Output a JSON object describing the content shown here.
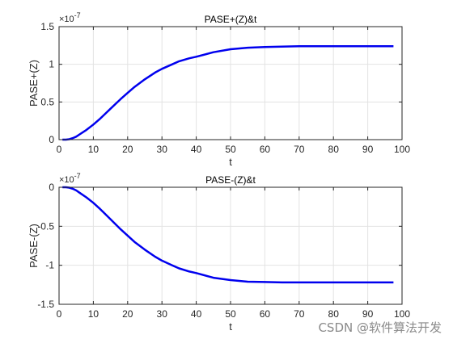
{
  "chart_data": [
    {
      "type": "line",
      "title": "PASE+(Z)&t",
      "xlabel": "t",
      "ylabel": "PASE+(Z)",
      "exponent_label": "×10",
      "exponent_power": "-7",
      "xlim": [
        0,
        100
      ],
      "ylim": [
        0,
        1.5
      ],
      "xticks": [
        0,
        10,
        20,
        30,
        40,
        50,
        60,
        70,
        80,
        90,
        100
      ],
      "yticks": [
        0,
        0.5,
        1,
        1.5
      ],
      "xtick_labels": [
        "0",
        "10",
        "20",
        "30",
        "40",
        "50",
        "60",
        "70",
        "80",
        "90",
        "100"
      ],
      "ytick_labels": [
        "0",
        "0.5",
        "1",
        "1.5"
      ],
      "grid": true,
      "series": [
        {
          "color": "#0000ee",
          "x": [
            1,
            2,
            3,
            4,
            5,
            6,
            8,
            10,
            12,
            15,
            18,
            20,
            22,
            25,
            28,
            30,
            33,
            35,
            38,
            40,
            45,
            50,
            55,
            60,
            65,
            70,
            75,
            80,
            85,
            90,
            95,
            97.5
          ],
          "y": [
            0,
            0,
            0.005,
            0.02,
            0.04,
            0.07,
            0.13,
            0.2,
            0.28,
            0.41,
            0.54,
            0.62,
            0.7,
            0.8,
            0.89,
            0.94,
            1.0,
            1.04,
            1.08,
            1.1,
            1.16,
            1.2,
            1.22,
            1.23,
            1.235,
            1.24,
            1.24,
            1.24,
            1.24,
            1.24,
            1.24,
            1.24
          ]
        }
      ]
    },
    {
      "type": "line",
      "title": "PASE-(Z)&t",
      "xlabel": "t",
      "ylabel": "PASE-(Z)",
      "exponent_label": "×10",
      "exponent_power": "-7",
      "xlim": [
        0,
        100
      ],
      "ylim": [
        -1.5,
        0
      ],
      "xticks": [
        0,
        10,
        20,
        30,
        40,
        50,
        60,
        70,
        80,
        90,
        100
      ],
      "yticks": [
        -1.5,
        -1,
        -0.5,
        0
      ],
      "xtick_labels": [
        "0",
        "10",
        "20",
        "30",
        "40",
        "50",
        "60",
        "70",
        "80",
        "90",
        "100"
      ],
      "ytick_labels": [
        "-1.5",
        "-1",
        "-0.5",
        "0"
      ],
      "grid": true,
      "series": [
        {
          "color": "#0000ee",
          "x": [
            1,
            2,
            3,
            4,
            5,
            6,
            8,
            10,
            12,
            15,
            18,
            20,
            22,
            25,
            28,
            30,
            33,
            35,
            38,
            40,
            45,
            50,
            55,
            60,
            65,
            70,
            75,
            80,
            85,
            90,
            95,
            97.5
          ],
          "y": [
            0,
            0,
            -0.005,
            -0.02,
            -0.04,
            -0.07,
            -0.13,
            -0.2,
            -0.28,
            -0.41,
            -0.54,
            -0.62,
            -0.7,
            -0.8,
            -0.89,
            -0.94,
            -1.0,
            -1.04,
            -1.08,
            -1.1,
            -1.16,
            -1.19,
            -1.21,
            -1.215,
            -1.22,
            -1.22,
            -1.22,
            -1.22,
            -1.22,
            -1.22,
            -1.22,
            -1.22
          ]
        }
      ]
    }
  ],
  "watermark": "CSDN @软件算法开发"
}
